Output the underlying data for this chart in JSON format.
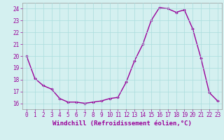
{
  "x": [
    0,
    1,
    2,
    3,
    4,
    5,
    6,
    7,
    8,
    9,
    10,
    11,
    12,
    13,
    14,
    15,
    16,
    17,
    18,
    19,
    20,
    21,
    22,
    23
  ],
  "y": [
    20.0,
    18.1,
    17.5,
    17.2,
    16.4,
    16.1,
    16.1,
    16.0,
    16.1,
    16.2,
    16.4,
    16.5,
    17.8,
    19.6,
    21.0,
    23.0,
    24.1,
    24.0,
    23.7,
    23.9,
    22.3,
    19.8,
    16.9,
    16.2
  ],
  "line_color": "#990099",
  "marker": "D",
  "markersize": 1.8,
  "linewidth": 1.0,
  "xlabel": "Windchill (Refroidissement éolien,°C)",
  "xlabel_fontsize": 6.5,
  "ylim": [
    15.5,
    24.5
  ],
  "xlim": [
    -0.5,
    23.5
  ],
  "yticks": [
    16,
    17,
    18,
    19,
    20,
    21,
    22,
    23,
    24
  ],
  "xticks": [
    0,
    1,
    2,
    3,
    4,
    5,
    6,
    7,
    8,
    9,
    10,
    11,
    12,
    13,
    14,
    15,
    16,
    17,
    18,
    19,
    20,
    21,
    22,
    23
  ],
  "grid_color": "#aadddd",
  "bg_color": "#d4f0f0",
  "tick_fontsize": 5.5,
  "tick_color": "#990099",
  "axis_color": "#777777"
}
